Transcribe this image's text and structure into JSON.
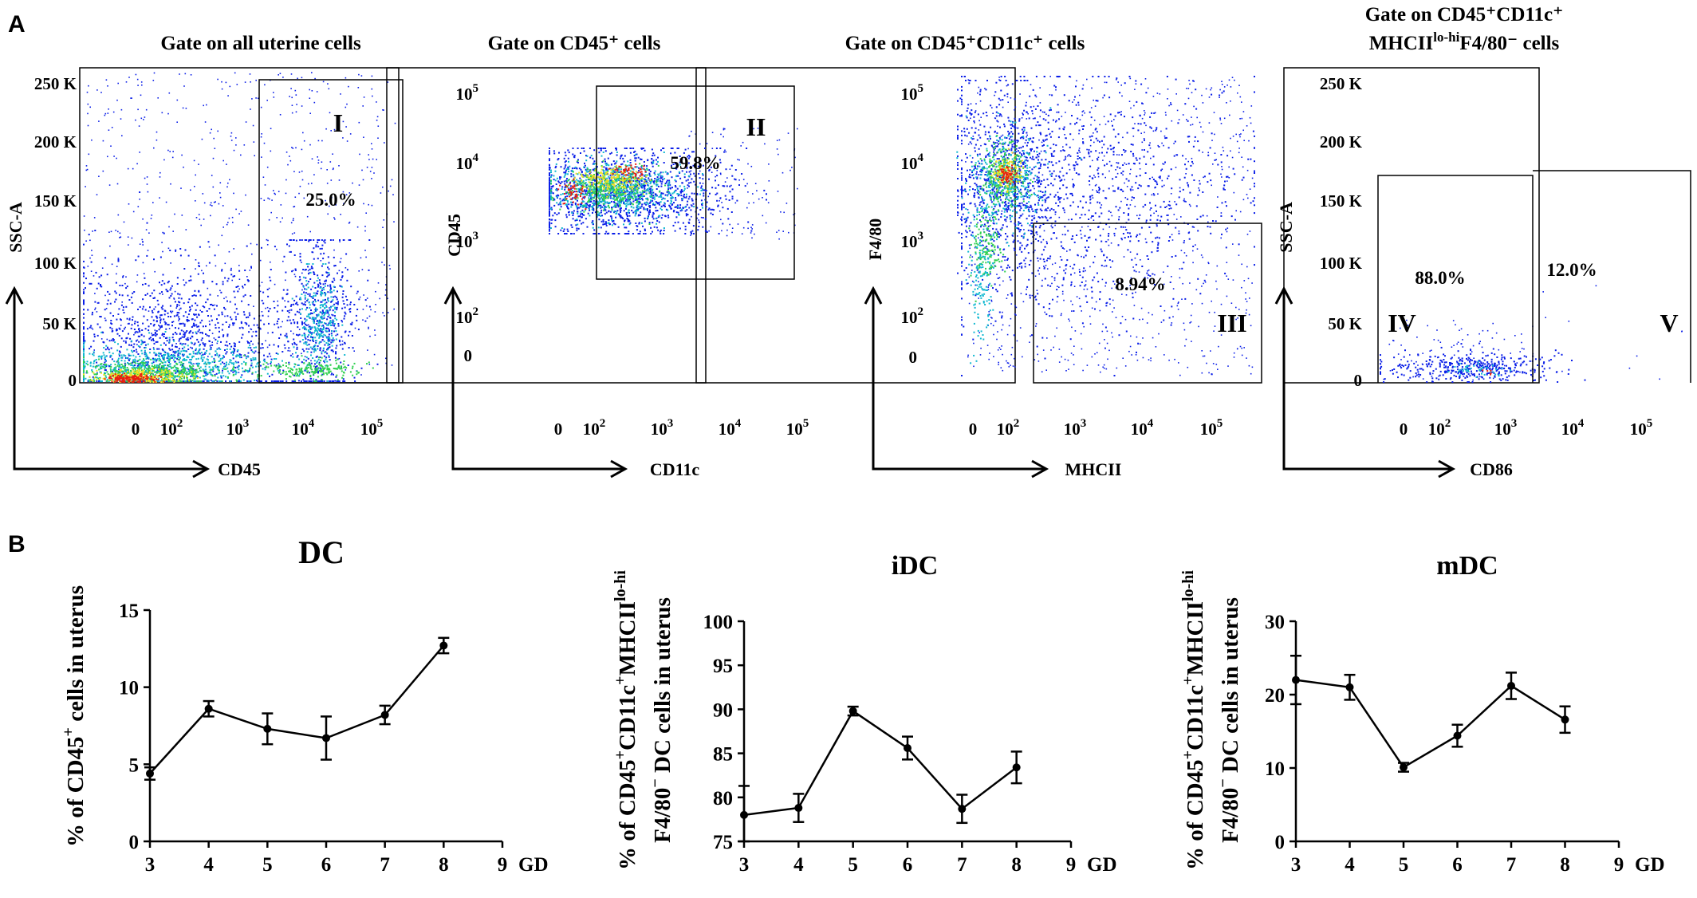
{
  "figure": {
    "panel_a_letter": "A",
    "panel_b_letter": "B"
  },
  "flow_panels": [
    {
      "title": "Gate on all uterine cells",
      "xlabel": "CD45",
      "ylabel": "SSC-A",
      "y_ticks": [
        "250 K",
        "200 K",
        "150 K",
        "100 K",
        "50 K",
        "0"
      ],
      "gate_label": "I",
      "gate_percent": "25.0%"
    },
    {
      "title": "Gate on CD45⁺ cells",
      "xlabel": "CD11c",
      "ylabel": "CD45",
      "gate_label": "II",
      "gate_percent": "59.8%"
    },
    {
      "title": "Gate on CD45⁺CD11c⁺ cells",
      "xlabel": "MHCII",
      "ylabel": "F4/80",
      "gate_label": "III",
      "gate_percent": "8.94%"
    },
    {
      "title_line1": "Gate on CD45⁺CD11c⁺",
      "title_line2_pre": "MHCII",
      "title_line2_sup": "lo-hi",
      "title_line2_post": "F4/80⁻ cells",
      "xlabel": "CD86",
      "ylabel": "SSC-A",
      "y_ticks": [
        "250 K",
        "200 K",
        "150 K",
        "100 K",
        "50 K",
        "0"
      ],
      "gate_labels": [
        "IV",
        "V"
      ],
      "gate_percents": [
        "88.0%",
        "12.0%"
      ]
    }
  ],
  "log_axis": {
    "zero": "0",
    "base": "10",
    "exponents": [
      "2",
      "3",
      "4",
      "5"
    ]
  },
  "chart_data": [
    {
      "type": "line",
      "title": "DC",
      "ylabel_pre": "% of CD45",
      "ylabel_sup": "+",
      "ylabel_post": " cells in uterus",
      "x": [
        3,
        4,
        5,
        6,
        7,
        8
      ],
      "values": [
        4.4,
        8.6,
        7.3,
        6.7,
        8.2,
        12.7
      ],
      "errors": [
        0.4,
        0.5,
        1.0,
        1.4,
        0.6,
        0.5
      ],
      "xlim": [
        3,
        9
      ],
      "ylim": [
        0,
        15
      ],
      "x_ticks": [
        "3",
        "4",
        "5",
        "6",
        "7",
        "8",
        "9"
      ],
      "y_ticks": [
        "0",
        "5",
        "10",
        "15"
      ],
      "xunit": "GD"
    },
    {
      "type": "line",
      "title": "iDC",
      "ylabel_line1_pre": "% of CD45",
      "ylabel_line1_sup1": "+",
      "ylabel_line1_mid": "CD11c",
      "ylabel_line1_sup2": "+",
      "ylabel_line1_mid2": "MHCII",
      "ylabel_line1_sup3": "lo-hi",
      "ylabel_line2_pre": "F4/80",
      "ylabel_line2_sup": "−",
      "ylabel_line2_post": " DC cells in uterus",
      "x": [
        3,
        4,
        5,
        6,
        7,
        8
      ],
      "values": [
        78.0,
        78.8,
        89.8,
        85.6,
        78.7,
        83.4
      ],
      "errors": [
        3.3,
        1.6,
        0.5,
        1.3,
        1.6,
        1.8
      ],
      "xlim": [
        3,
        9
      ],
      "ylim": [
        75,
        100
      ],
      "x_ticks": [
        "3",
        "4",
        "5",
        "6",
        "7",
        "8",
        "9"
      ],
      "y_ticks": [
        "75",
        "80",
        "85",
        "90",
        "95",
        "100"
      ],
      "xunit": "GD"
    },
    {
      "type": "line",
      "title": "mDC",
      "ylabel_line1_pre": "% of CD45",
      "ylabel_line1_sup1": "+",
      "ylabel_line1_mid": "CD11c",
      "ylabel_line1_sup2": "+",
      "ylabel_line1_mid2": "MHCII",
      "ylabel_line1_sup3": "lo-hi",
      "ylabel_line2_pre": "F4/80",
      "ylabel_line2_sup": "−",
      "ylabel_line2_post": " DC cells in uterus",
      "x": [
        3,
        4,
        5,
        6,
        7,
        8
      ],
      "values": [
        22.0,
        21.0,
        10.1,
        14.4,
        21.2,
        16.6
      ],
      "errors": [
        3.3,
        1.7,
        0.6,
        1.5,
        1.8,
        1.8
      ],
      "xlim": [
        3,
        9
      ],
      "ylim": [
        0,
        30
      ],
      "x_ticks": [
        "3",
        "4",
        "5",
        "6",
        "7",
        "8",
        "9"
      ],
      "y_ticks": [
        "0",
        "10",
        "20",
        "30"
      ],
      "xunit": "GD"
    }
  ],
  "colors": {
    "dot_low": "#0a1ee8",
    "dot_mid": "#10b8d0",
    "dot_green": "#30d050",
    "dot_yellow": "#f0e020",
    "dot_high": "#e81e10",
    "ink": "#000000"
  }
}
